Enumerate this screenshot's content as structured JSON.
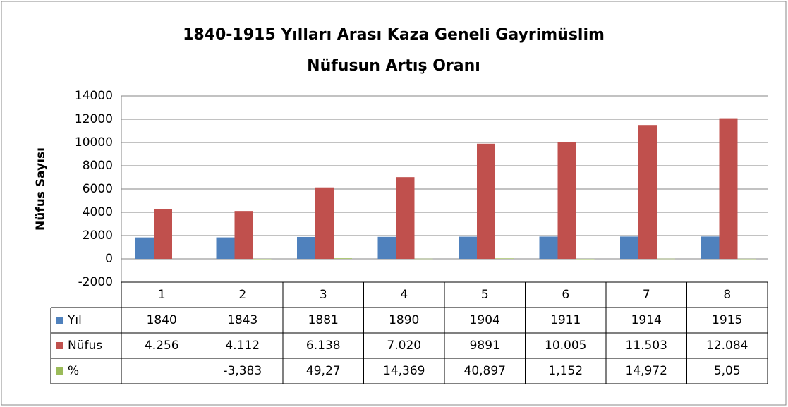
{
  "chart_data": {
    "type": "bar",
    "title": "1840-1915 Yılları Arası Kaza Geneli Gayrimüslim Nüfusun Artış Oranı",
    "y_label": "Nüfus Sayısı",
    "categories": [
      "1",
      "2",
      "3",
      "4",
      "5",
      "6",
      "7",
      "8"
    ],
    "series": [
      {
        "name": "Yıl",
        "color": "#4f81bd",
        "values": [
          1840,
          1843,
          1881,
          1890,
          1904,
          1911,
          1914,
          1915
        ]
      },
      {
        "name": "Nüfus",
        "color": "#c0504d",
        "values": [
          4256,
          4112,
          6138,
          7020,
          9891,
          10005,
          11503,
          12084
        ],
        "value_labels": [
          "4.256",
          "4.112",
          "6.138",
          "7.020",
          "9891",
          "10.005",
          "11.503",
          "12.084"
        ]
      },
      {
        "name": "%",
        "color": "#9bbb59",
        "values": [
          null,
          -3.383,
          49.27,
          14.369,
          40.897,
          1.152,
          14.972,
          5.05
        ],
        "value_labels": [
          null,
          "-3,383",
          "49,27",
          "14,369",
          "40,897",
          "1,152",
          "14,972",
          "5,05"
        ]
      }
    ],
    "ylim": [
      -2000,
      14000
    ],
    "yticks": [
      -2000,
      0,
      2000,
      4000,
      6000,
      8000,
      10000,
      12000,
      14000
    ],
    "grid": true,
    "data_table": true
  }
}
